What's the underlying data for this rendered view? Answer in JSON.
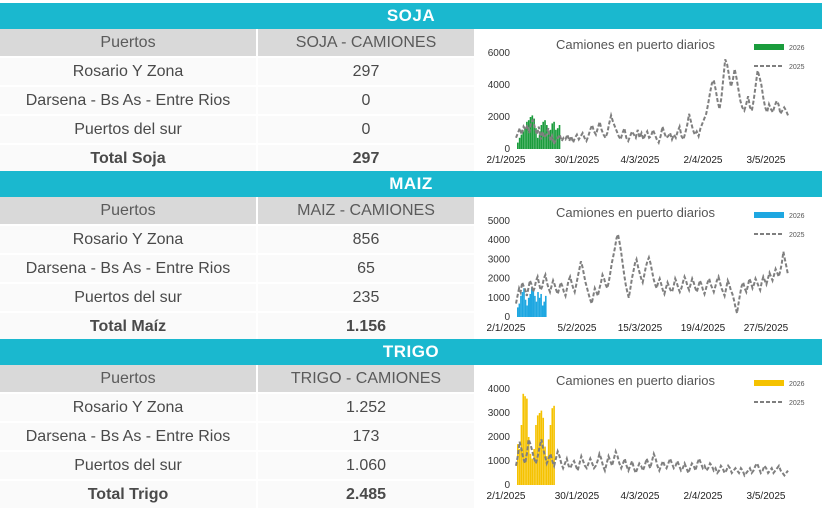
{
  "sections": [
    {
      "id": "soja",
      "title": "SOJA",
      "table": {
        "headers": [
          "Puertos",
          "SOJA - CAMIONES"
        ],
        "rows": [
          {
            "puerto": "Rosario Y Zona",
            "valor": "297"
          },
          {
            "puerto": "Darsena - Bs As - Entre Rios",
            "valor": "0"
          },
          {
            "puerto": "Puertos del sur",
            "valor": "0"
          }
        ],
        "total": {
          "label": "Total Soja",
          "valor": "297"
        }
      }
    },
    {
      "id": "maiz",
      "title": "MAIZ",
      "table": {
        "headers": [
          "Puertos",
          "MAIZ - CAMIONES"
        ],
        "rows": [
          {
            "puerto": "Rosario Y Zona",
            "valor": "856"
          },
          {
            "puerto": "Darsena - Bs As - Entre Rios",
            "valor": "65"
          },
          {
            "puerto": "Puertos del sur",
            "valor": "235"
          }
        ],
        "total": {
          "label": "Total Maíz",
          "valor": "1.156"
        }
      }
    },
    {
      "id": "trigo",
      "title": "TRIGO",
      "table": {
        "headers": [
          "Puertos",
          "TRIGO - CAMIONES"
        ],
        "rows": [
          {
            "puerto": "Rosario Y Zona",
            "valor": "1.252"
          },
          {
            "puerto": "Darsena - Bs As - Entre Rios",
            "valor": "173"
          },
          {
            "puerto": "Puertos del sur",
            "valor": "1.060"
          }
        ],
        "total": {
          "label": "Total Trigo",
          "valor": "2.485"
        }
      }
    }
  ],
  "chart_data": [
    {
      "type": "bar",
      "title": "Camiones en puerto diarios",
      "ylim": [
        0,
        6000
      ],
      "yticks": [
        "0",
        "2000",
        "4000",
        "6000"
      ],
      "xticks": [
        "2/1/2025",
        "30/1/2025",
        "4/3/2025",
        "2/4/2025",
        "3/5/2025"
      ],
      "x_days": 150,
      "series": [
        {
          "name": "2026",
          "type": "bar",
          "color": "#1a9c3c",
          "values": [
            400,
            700,
            900,
            1100,
            1300,
            1700,
            1800,
            2000,
            2100,
            1900,
            1300,
            700,
            900,
            1500,
            1700,
            1800,
            1500,
            1100,
            1200,
            1600,
            1700,
            1200,
            1300,
            1500
          ]
        },
        {
          "name": "2025",
          "type": "line",
          "color": "#7f7f7f",
          "dashed": true,
          "values": [
            700,
            1000,
            1300,
            900,
            1400,
            1200,
            1500,
            1000,
            1700,
            1800,
            1300,
            900,
            1400,
            600,
            1100,
            700,
            900,
            1300,
            500,
            800,
            300,
            600,
            700,
            900,
            500,
            700,
            600,
            900,
            500,
            800,
            400,
            700,
            900,
            600,
            800,
            1000,
            700,
            500,
            800,
            1200,
            1500,
            1100,
            900,
            1300,
            1700,
            1200,
            900,
            700,
            1000,
            1600,
            2100,
            1700,
            1400,
            1100,
            800,
            600,
            1000,
            1300,
            700,
            500,
            800,
            1100,
            900,
            700,
            1200,
            700,
            1000,
            600,
            900,
            1100,
            700,
            800,
            1200,
            900,
            600,
            400,
            800,
            1400,
            1000,
            700,
            800,
            1000,
            600,
            900,
            700,
            1100,
            1400,
            800,
            600,
            1000,
            1500,
            2200,
            1700,
            1200,
            900,
            1100,
            800,
            1300,
            1600,
            1900,
            2200,
            2800,
            3500,
            4100,
            4300,
            3700,
            3000,
            2500,
            3200,
            4400,
            5600,
            5300,
            4600,
            3900,
            4300,
            5000,
            4400,
            3700,
            3000,
            2600,
            2400,
            2800,
            3300,
            2600,
            2400,
            3100,
            4000,
            4900,
            4500,
            4000,
            3200,
            2600,
            2300,
            2800,
            2500,
            2300,
            2700,
            3000,
            2800,
            2200,
            2400,
            2600,
            2400,
            2100
          ]
        }
      ]
    },
    {
      "type": "bar",
      "title": "Camiones en puerto diarios",
      "ylim": [
        0,
        5000
      ],
      "yticks": [
        "0",
        "1000",
        "2000",
        "3000",
        "4000",
        "5000"
      ],
      "xticks": [
        "2/1/2025",
        "5/2/2025",
        "15/3/2025",
        "19/4/2025",
        "27/5/2025"
      ],
      "x_days": 175,
      "series": [
        {
          "name": "2026",
          "type": "bar",
          "color": "#1ea7e1",
          "values": [
            500,
            700,
            1100,
            1300,
            1500,
            900,
            600,
            1000,
            1200,
            1500,
            1400,
            1100,
            800,
            1300,
            1000,
            1200,
            600,
            800,
            1100
          ]
        },
        {
          "name": "2025",
          "type": "line",
          "color": "#7f7f7f",
          "dashed": true,
          "values": [
            700,
            1100,
            1500,
            1300,
            1800,
            1600,
            1400,
            1100,
            1500,
            1900,
            1700,
            1300,
            1500,
            1900,
            2100,
            1700,
            1400,
            1600,
            2000,
            2200,
            1800,
            1500,
            1300,
            1600,
            1900,
            1700,
            1400,
            1200,
            1500,
            1800,
            1600,
            1300,
            1100,
            1500,
            1900,
            2100,
            1800,
            1500,
            1300,
            1700,
            2100,
            2500,
            2900,
            2600,
            2200,
            1800,
            1500,
            1200,
            900,
            700,
            1100,
            1500,
            1300,
            1100,
            1500,
            1800,
            2200,
            2000,
            1700,
            1500,
            1800,
            2300,
            2800,
            3200,
            3600,
            4100,
            4300,
            3900,
            3400,
            2800,
            2200,
            1700,
            1300,
            1000,
            1500,
            2000,
            2400,
            2800,
            3000,
            2600,
            2300,
            2000,
            1800,
            2200,
            2600,
            2900,
            3100,
            2800,
            2400,
            2000,
            1700,
            1500,
            1800,
            2000,
            1700,
            1400,
            1200,
            1500,
            1800,
            1600,
            1400,
            1300,
            1600,
            2000,
            1800,
            1500,
            1300,
            1500,
            1800,
            2100,
            1900,
            1600,
            1400,
            1700,
            2000,
            1800,
            1500,
            1300,
            1600,
            1900,
            1700,
            1400,
            1200,
            1500,
            1800,
            2000,
            1700,
            1500,
            1300,
            1600,
            1900,
            2100,
            1800,
            1500,
            1300,
            1100,
            1500,
            1900,
            1700,
            1400,
            1200,
            900,
            500,
            200,
            700,
            1200,
            1600,
            1800,
            1500,
            1300,
            1600,
            2000,
            1800,
            1500,
            1700,
            2000,
            1800,
            1600,
            1400,
            1800,
            2100,
            1900,
            1700,
            2000,
            2300,
            2100,
            1900,
            2200,
            2500,
            2300,
            2100,
            2400,
            2800,
            3400,
            3000,
            2600,
            2200
          ]
        }
      ]
    },
    {
      "type": "bar",
      "title": "Camiones en puerto diarios",
      "ylim": [
        0,
        4000
      ],
      "yticks": [
        "0",
        "1000",
        "2000",
        "3000",
        "4000"
      ],
      "xticks": [
        "2/1/2025",
        "30/1/2025",
        "4/3/2025",
        "2/4/2025",
        "3/5/2025"
      ],
      "x_days": 150,
      "series": [
        {
          "name": "2026",
          "type": "bar",
          "color": "#f5c200",
          "values": [
            1700,
            1500,
            2500,
            3800,
            3700,
            3600,
            2000,
            1300,
            1100,
            1500,
            2500,
            2900,
            3000,
            3100,
            2800,
            1600,
            1200,
            1900,
            2500,
            3200,
            3300
          ]
        },
        {
          "name": "2025",
          "type": "line",
          "color": "#7f7f7f",
          "dashed": true,
          "values": [
            800,
            1200,
            1800,
            1500,
            1100,
            900,
            1300,
            1900,
            1700,
            1400,
            1100,
            900,
            1200,
            1600,
            1900,
            1500,
            1200,
            900,
            1100,
            1300,
            1000,
            800,
            1100,
            1400,
            1200,
            900,
            700,
            900,
            1100,
            800,
            700,
            900,
            1000,
            800,
            600,
            900,
            1200,
            1000,
            800,
            700,
            900,
            1100,
            900,
            700,
            800,
            1000,
            1300,
            1100,
            800,
            600,
            900,
            1200,
            1000,
            800,
            1100,
            1400,
            1200,
            900,
            700,
            900,
            1100,
            800,
            600,
            800,
            1000,
            700,
            500,
            700,
            900,
            800,
            600,
            800,
            1100,
            900,
            700,
            1000,
            1300,
            1100,
            800,
            600,
            800,
            1000,
            800,
            700,
            900,
            1100,
            900,
            700,
            800,
            1000,
            800,
            600,
            700,
            900,
            700,
            500,
            700,
            900,
            800,
            600,
            900,
            1100,
            900,
            700,
            800,
            600,
            700,
            900,
            800,
            600,
            700,
            500,
            600,
            800,
            700,
            500,
            600,
            800,
            700,
            500,
            600,
            700,
            600,
            500,
            700,
            600,
            400,
            500,
            600,
            700,
            500,
            600,
            800,
            900,
            700,
            500,
            600,
            800,
            700,
            500,
            600,
            700,
            500,
            600,
            700,
            800,
            600,
            500,
            400,
            500,
            600
          ]
        }
      ]
    }
  ]
}
